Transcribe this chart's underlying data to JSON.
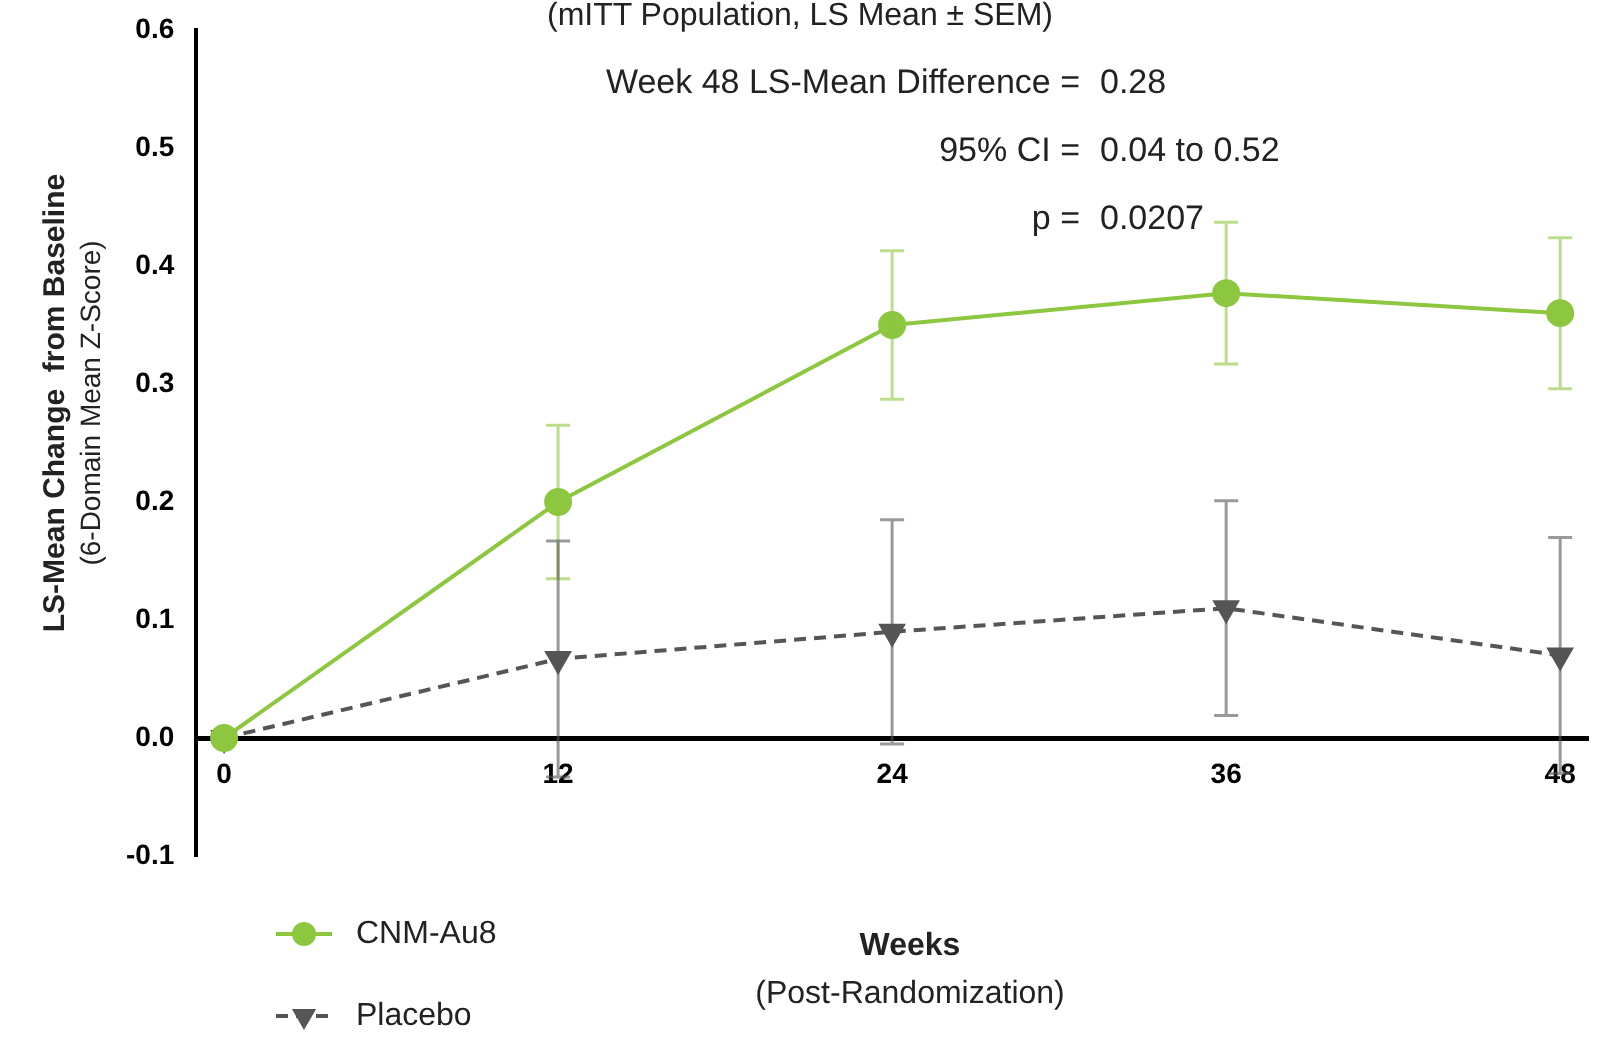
{
  "chart_data": {
    "type": "line",
    "title": "(mITT Population, LS Mean ± SEM)",
    "xlabel": "Weeks\n(Post-Randomization)",
    "ylabel": "LS-Mean Change  from Baseline\n(6-Domain Mean Z-Score)",
    "annotations": [
      "Week 48 LS-Mean Difference =  0.28",
      "95% CI =  0.04 to 0.52",
      "p =  0.0207"
    ],
    "x": [
      0,
      12,
      24,
      36,
      48
    ],
    "series": [
      {
        "name": "CNM-Au8",
        "color": "#8dc63f",
        "marker": "circle",
        "line_style": "solid",
        "values": [
          0,
          0.2,
          0.35,
          0.377,
          0.36
        ],
        "errors": [
          null,
          0.065,
          0.063,
          0.06,
          0.064
        ]
      },
      {
        "name": "Placebo",
        "color": "#555555",
        "marker": "triangle",
        "line_style": "dashed",
        "values": [
          0,
          0.067,
          0.09,
          0.11,
          0.07
        ],
        "errors": [
          null,
          0.1,
          0.095,
          0.091,
          0.1
        ]
      }
    ],
    "xlim": [
      -1,
      49
    ],
    "xticks": [
      0,
      12,
      24,
      36,
      48
    ],
    "ylim": [
      -0.1,
      0.6
    ],
    "yticks": [
      -0.1,
      {
        "value": 0,
        "label": "0.0"
      },
      0.1,
      0.2,
      0.3,
      0.4,
      0.5,
      0.6
    ],
    "grid": false,
    "legend": "bottom left"
  }
}
